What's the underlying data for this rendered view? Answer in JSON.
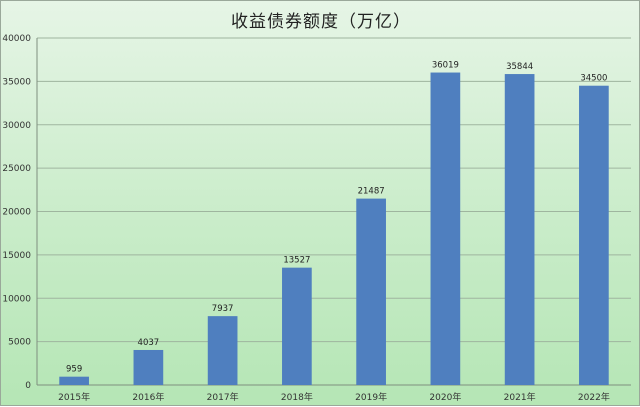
{
  "chart_data": {
    "type": "bar",
    "title": "收益债券额度（万亿）",
    "categories": [
      "2015年",
      "2016年",
      "2017年",
      "2018年",
      "2019年",
      "2020年",
      "2021年",
      "2022年"
    ],
    "values": [
      959,
      4037,
      7937,
      13527,
      21487,
      36019,
      35844,
      34500
    ],
    "ylim": [
      0,
      40000
    ],
    "yticks": [
      0,
      5000,
      10000,
      15000,
      20000,
      25000,
      30000,
      35000,
      40000
    ],
    "grid": true,
    "legend": "none",
    "bar_color": "#4f7fbf",
    "background_colors": [
      "#e6f5e6",
      "#b5e6b5"
    ]
  }
}
